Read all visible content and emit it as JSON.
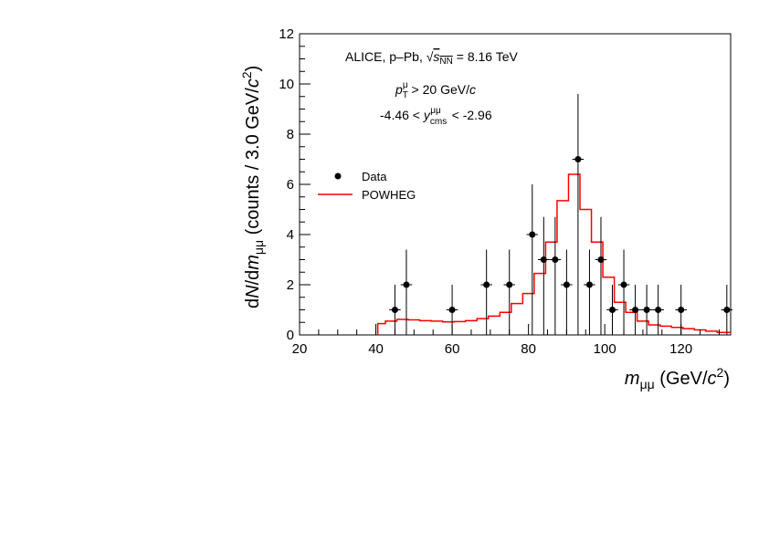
{
  "chart_data": {
    "type": "histogram",
    "xlim": [
      20,
      133
    ],
    "ylim": [
      0,
      12
    ],
    "x_ticks": [
      20,
      40,
      60,
      80,
      100,
      120
    ],
    "y_ticks": [
      0,
      2,
      4,
      6,
      8,
      10,
      12
    ],
    "x_tick_labels": [
      "20",
      "40",
      "60",
      "80",
      "100",
      "120"
    ],
    "y_tick_labels": [
      "0",
      "2",
      "4",
      "6",
      "8",
      "10",
      "12"
    ],
    "xlabel": "m_μμ (GeV/c²)",
    "ylabel": "dN/dm_μμ (counts / 3.0 GeV/c²)",
    "annotations": {
      "line1": "ALICE, p–Pb, √s_NN = 8.16 TeV",
      "line2": "p_T^μ > 20 GeV/c",
      "line3": "-4.46 < y_cms^μμ < -2.96"
    },
    "legend": {
      "placement": "upper-left",
      "entries": [
        {
          "label": "Data",
          "style": "marker"
        },
        {
          "label": "POWHEG",
          "style": "line"
        }
      ]
    },
    "series": [
      {
        "name": "Data",
        "kind": "points-with-errors",
        "color": "#000000",
        "points": [
          {
            "x": 45.0,
            "y": 1,
            "err_low": 1.0,
            "err_high": 1.0
          },
          {
            "x": 48.0,
            "y": 2,
            "err_low": 1.4,
            "err_high": 1.4
          },
          {
            "x": 60.0,
            "y": 1,
            "err_low": 1.0,
            "err_high": 1.0
          },
          {
            "x": 69.0,
            "y": 2,
            "err_low": 1.4,
            "err_high": 1.4
          },
          {
            "x": 75.0,
            "y": 2,
            "err_low": 1.4,
            "err_high": 1.4
          },
          {
            "x": 81.0,
            "y": 4,
            "err_low": 2.0,
            "err_high": 2.0
          },
          {
            "x": 84.0,
            "y": 3,
            "err_low": 1.7,
            "err_high": 1.7
          },
          {
            "x": 87.0,
            "y": 3,
            "err_low": 1.7,
            "err_high": 1.7
          },
          {
            "x": 90.0,
            "y": 2,
            "err_low": 1.4,
            "err_high": 1.4
          },
          {
            "x": 93.0,
            "y": 7,
            "err_low": 2.6,
            "err_high": 2.6
          },
          {
            "x": 96.0,
            "y": 2,
            "err_low": 1.4,
            "err_high": 1.4
          },
          {
            "x": 99.0,
            "y": 3,
            "err_low": 1.7,
            "err_high": 1.7
          },
          {
            "x": 102.0,
            "y": 1,
            "err_low": 1.0,
            "err_high": 1.0
          },
          {
            "x": 105.0,
            "y": 2,
            "err_low": 1.4,
            "err_high": 1.4
          },
          {
            "x": 108.0,
            "y": 1,
            "err_low": 1.0,
            "err_high": 1.0
          },
          {
            "x": 111.0,
            "y": 1,
            "err_low": 1.0,
            "err_high": 1.0
          },
          {
            "x": 114.0,
            "y": 1,
            "err_low": 1.0,
            "err_high": 1.0
          },
          {
            "x": 120.0,
            "y": 1,
            "err_low": 1.0,
            "err_high": 1.0
          },
          {
            "x": 132.0,
            "y": 1,
            "err_low": 1.0,
            "err_high": 1.0
          }
        ]
      },
      {
        "name": "POWHEG",
        "kind": "step",
        "color": "#ff0000",
        "bin_edges": [
          40.5,
          42.5,
          45.5,
          48.5,
          51.5,
          54.5,
          57.5,
          60.5,
          63.5,
          66.5,
          69.5,
          72.5,
          75.5,
          78.5,
          81.5,
          84.5,
          87.5,
          90.5,
          93.5,
          96.5,
          99.5,
          102.5,
          105.5,
          108.5,
          111.5,
          114.5,
          117.5,
          120.5,
          123.5,
          126.5,
          129.5,
          133.0
        ],
        "values": [
          0.45,
          0.55,
          0.62,
          0.6,
          0.57,
          0.55,
          0.52,
          0.53,
          0.57,
          0.65,
          0.75,
          0.9,
          1.25,
          1.65,
          2.45,
          3.7,
          5.35,
          6.4,
          5.0,
          3.7,
          2.3,
          1.3,
          0.9,
          0.55,
          0.4,
          0.35,
          0.3,
          0.25,
          0.2,
          0.15,
          0.1
        ]
      }
    ]
  }
}
